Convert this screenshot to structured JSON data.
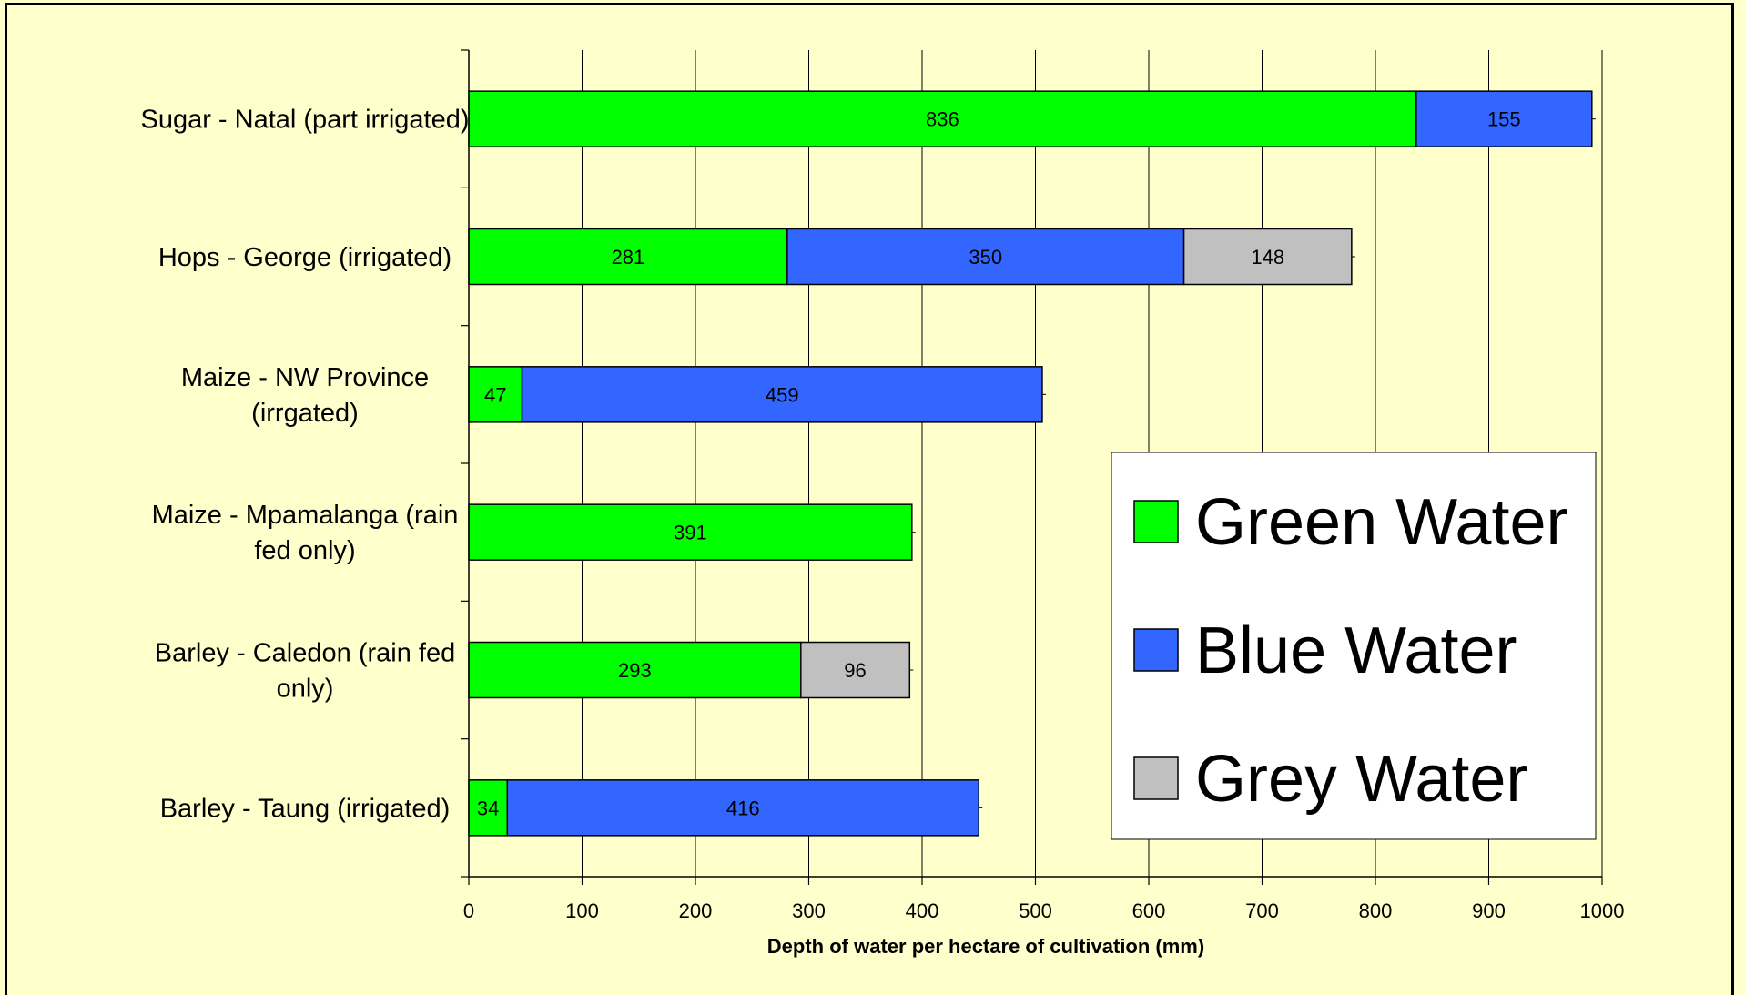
{
  "chart_data": {
    "type": "bar",
    "orientation": "horizontal",
    "stacked": true,
    "categories": [
      [
        "Sugar - Natal (part irrigated)"
      ],
      [
        "Hops - George (irrigated)"
      ],
      [
        "Maize - NW Province",
        "(irrgated)"
      ],
      [
        "Maize - Mpamalanga (rain",
        "fed only)"
      ],
      [
        "Barley - Caledon (rain fed",
        "only)"
      ],
      [
        "Barley - Taung (irrigated)"
      ]
    ],
    "series": [
      {
        "name": "Green Water",
        "color": "#00ff00",
        "values": [
          836,
          281,
          47,
          391,
          293,
          34
        ]
      },
      {
        "name": "Blue Water",
        "color": "#3366ff",
        "values": [
          155,
          350,
          459,
          0,
          0,
          416
        ]
      },
      {
        "name": "Grey Water",
        "color": "#c0c0c0",
        "values": [
          0,
          148,
          0,
          0,
          96,
          0
        ]
      }
    ],
    "xlabel": "Depth of water per hectare of cultivation (mm)",
    "xlim": [
      0,
      1000
    ],
    "xticks": [
      0,
      100,
      200,
      300,
      400,
      500,
      600,
      700,
      800,
      900,
      1000
    ],
    "grid": "vertical",
    "legend_position": "lower-right"
  }
}
